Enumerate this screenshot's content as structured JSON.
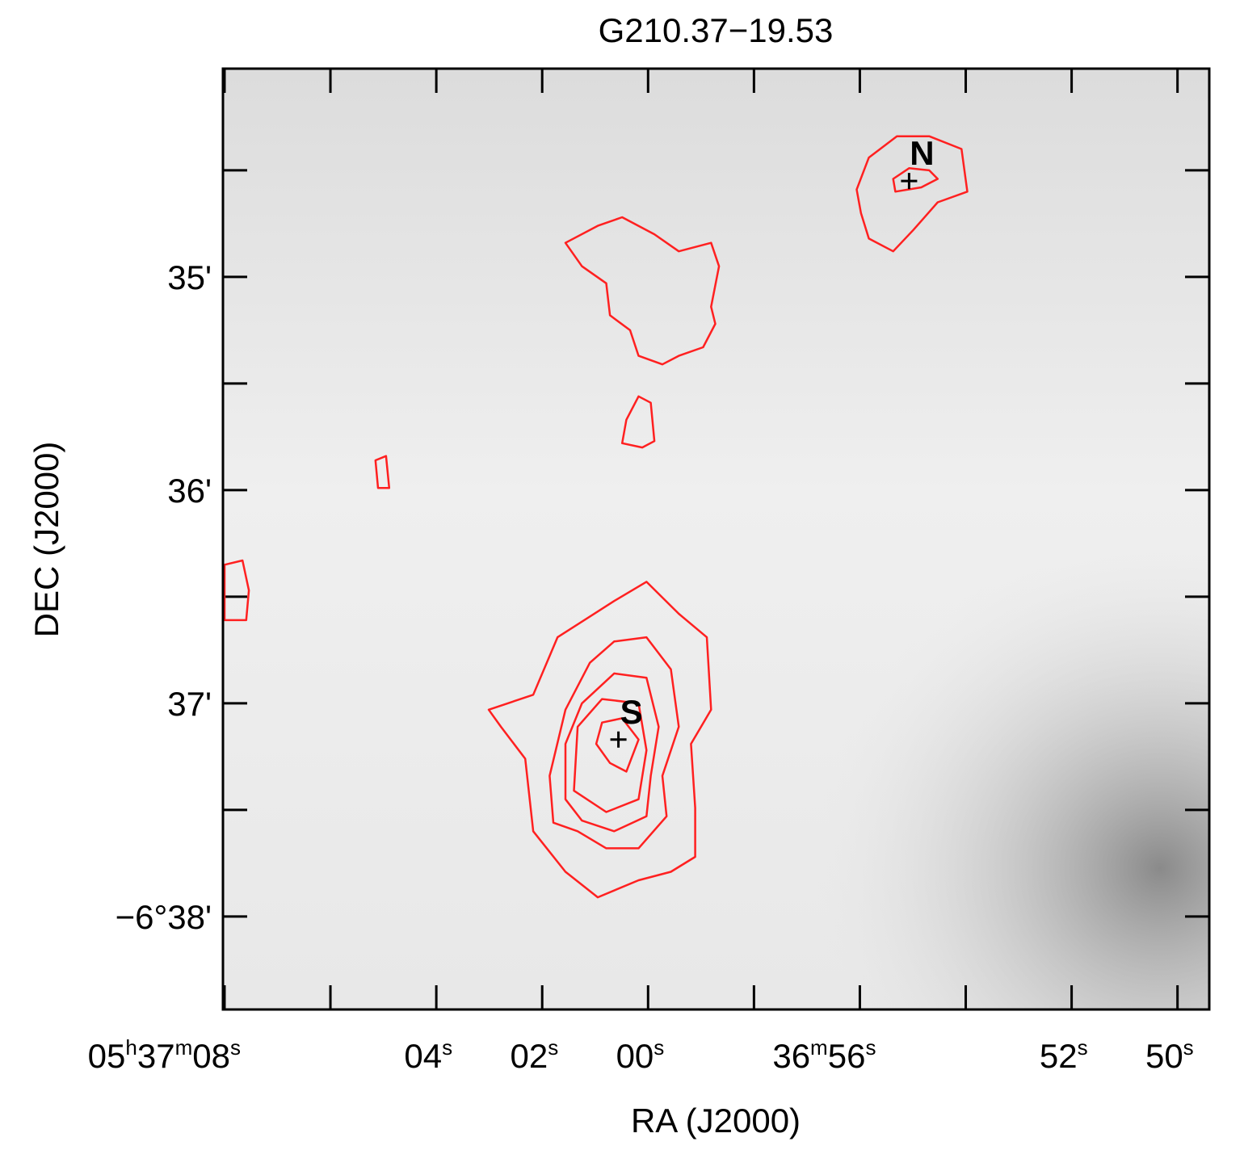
{
  "chart_data": {
    "type": "contour",
    "title": "G210.37−19.53",
    "xlabel": "RA (J2000)",
    "ylabel": "DEC (J2000)",
    "xlim": [
      8.03,
      -10.6
    ],
    "ylim": [
      -38.436,
      -34.023
    ],
    "xticks": [
      {
        "value": 8,
        "label": "05h37m08s"
      },
      {
        "value": 4,
        "label": "04s"
      },
      {
        "value": 2,
        "label": "02s"
      },
      {
        "value": 0,
        "label": "00s"
      },
      {
        "value": -4,
        "label": "36m56s"
      },
      {
        "value": -8,
        "label": "52s"
      },
      {
        "value": -10,
        "label": "50s"
      }
    ],
    "xminor": [
      6,
      -2,
      -6
    ],
    "yticks": [
      {
        "value": -35,
        "label": "35'"
      },
      {
        "value": -36,
        "label": "36'"
      },
      {
        "value": -37,
        "label": "37'"
      },
      {
        "value": -38,
        "label": "−6°38'"
      }
    ],
    "yminor": [
      -34.5,
      -35.5,
      -36.5,
      -37.5
    ],
    "color": "#ff2020",
    "contours": [
      {
        "x": [
          -3.94,
          -4.17,
          -4.7,
          -5.31,
          -5.92,
          -6.03,
          -5.47,
          -5.01,
          -4.63,
          -4.17,
          -4.02
        ],
        "y": [
          -34.59,
          -34.44,
          -34.34,
          -34.34,
          -34.4,
          -34.6,
          -34.65,
          -34.78,
          -34.88,
          -34.82,
          -34.7
        ]
      },
      {
        "x": [
          -4.63,
          -4.93,
          -5.31,
          -5.47,
          -5.16,
          -4.67
        ],
        "y": [
          -34.54,
          -34.49,
          -34.5,
          -34.54,
          -34.58,
          -34.6
        ]
      },
      {
        "x": [
          3.01,
          2.17,
          1.71,
          0.64,
          0.03,
          -0.58,
          -1.11,
          -1.19,
          -0.81,
          -0.89,
          -0.89,
          -0.43,
          0.18,
          0.95,
          1.56,
          2.17,
          2.32,
          2.78
        ],
        "y": [
          -37.03,
          -36.96,
          -36.69,
          -36.52,
          -36.43,
          -36.58,
          -36.69,
          -37.03,
          -37.19,
          -37.49,
          -37.72,
          -37.79,
          -37.83,
          -37.91,
          -37.79,
          -37.6,
          -37.26,
          -37.11
        ]
      },
      {
        "x": [
          1.79,
          1.86,
          1.56,
          1.1,
          0.64,
          0.03,
          -0.43,
          -0.58,
          -0.27,
          -0.35,
          0.18,
          0.79,
          1.33
        ],
        "y": [
          -37.56,
          -37.34,
          -37.03,
          -36.81,
          -36.71,
          -36.69,
          -36.84,
          -37.11,
          -37.34,
          -37.53,
          -37.68,
          -37.68,
          -37.6
        ]
      },
      {
        "x": [
          1.56,
          1.56,
          1.25,
          0.64,
          0.03,
          -0.2,
          -0.05,
          0.03,
          0.64,
          1.25
        ],
        "y": [
          -37.45,
          -37.19,
          -37.0,
          -36.86,
          -36.88,
          -37.11,
          -37.34,
          -37.53,
          -37.6,
          -37.55
        ]
      },
      {
        "x": [
          1.4,
          1.33,
          0.87,
          0.18,
          0.03,
          0.18,
          0.79
        ],
        "y": [
          -37.41,
          -37.11,
          -36.98,
          -37.0,
          -37.22,
          -37.45,
          -37.51
        ]
      },
      {
        "x": [
          0.98,
          0.87,
          0.49,
          0.18,
          0.41,
          0.72
        ],
        "y": [
          -37.19,
          -37.09,
          -37.07,
          -37.17,
          -37.32,
          -37.28
        ]
      },
      {
        "x": [
          1.56,
          0.95,
          0.49,
          -0.12,
          -0.58,
          -1.19,
          -1.34,
          -1.19,
          -1.27,
          -1.04,
          -0.58,
          -0.27,
          0.18,
          0.34,
          0.72,
          0.79,
          1.25
        ],
        "y": [
          -34.84,
          -34.76,
          -34.72,
          -34.8,
          -34.88,
          -34.84,
          -34.95,
          -35.14,
          -35.22,
          -35.33,
          -35.37,
          -35.41,
          -35.37,
          -35.25,
          -35.18,
          -35.03,
          -34.95
        ]
      },
      {
        "x": [
          0.49,
          0.41,
          0.18,
          -0.05,
          -0.12,
          0.11
        ],
        "y": [
          -35.78,
          -35.67,
          -35.56,
          -35.59,
          -35.77,
          -35.8
        ]
      },
      {
        "x": [
          8.0,
          7.66,
          7.54,
          7.59,
          8.0
        ],
        "y": [
          -36.35,
          -36.33,
          -36.47,
          -36.61,
          -36.61
        ]
      },
      {
        "x": [
          5.15,
          4.95,
          4.89,
          5.1
        ],
        "y": [
          -35.86,
          -35.84,
          -35.99,
          -35.99
        ]
      }
    ],
    "sources": [
      {
        "label": "N",
        "x": -4.93,
        "y": -34.55
      },
      {
        "label": "S",
        "x": 0.56,
        "y": -37.17
      }
    ]
  }
}
